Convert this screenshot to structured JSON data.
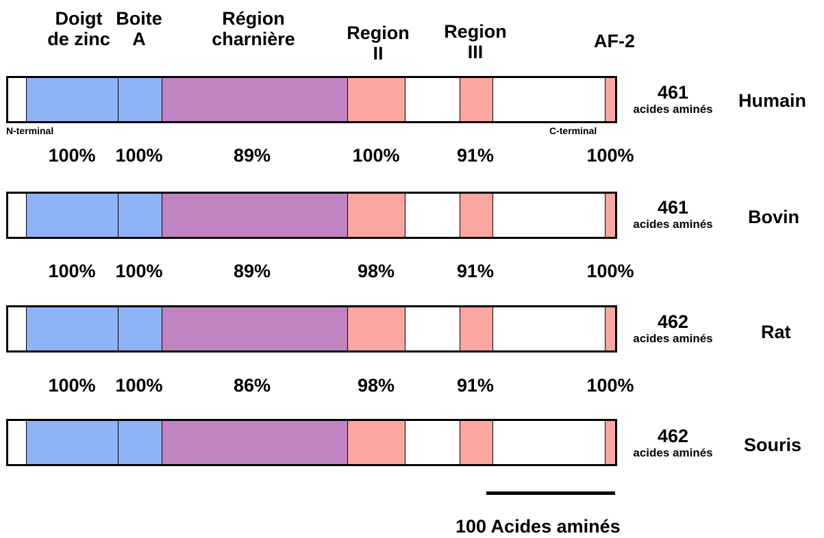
{
  "domains": [
    {
      "label_lines": [
        "Doigt",
        "de zinc"
      ],
      "color": "#8fb3f7"
    },
    {
      "label_lines": [
        "Boite",
        "A"
      ],
      "color": "#8fb3f7"
    },
    {
      "label_lines": [
        "Région",
        "charnière"
      ],
      "color": "#c083c2"
    },
    {
      "label_lines": [
        "Region",
        "II"
      ],
      "color": "#f9a7a0"
    },
    {
      "label_lines": [
        "Region",
        "III"
      ],
      "color": "#f9a7a0"
    },
    {
      "label_lines": [
        "AF-2"
      ],
      "color": "#f9a7a0"
    }
  ],
  "segment_colors": {
    "blank": "#ffffff",
    "zinc_finger": "#8fb3f7",
    "box_a": "#8fb3f7",
    "hinge": "#c083c2",
    "region": "#f9a7a0"
  },
  "terminals": {
    "n": "N-terminal",
    "c": "C-terminal"
  },
  "species": [
    {
      "name": "Humain",
      "length": "461",
      "unit": "acides aminés"
    },
    {
      "name": "Bovin",
      "length": "461",
      "unit": "acides aminés"
    },
    {
      "name": "Rat",
      "length": "462",
      "unit": "acides aminés"
    },
    {
      "name": "Souris",
      "length": "462",
      "unit": "acides aminés"
    }
  ],
  "identity_rows": [
    [
      "100%",
      "100%",
      "89%",
      "100%",
      "91%",
      "100%"
    ],
    [
      "100%",
      "100%",
      "89%",
      "98%",
      "91%",
      "100%"
    ],
    [
      "100%",
      "100%",
      "86%",
      "98%",
      "91%",
      "100%"
    ]
  ],
  "scale_bar": {
    "label": "100 Acides aminés"
  }
}
